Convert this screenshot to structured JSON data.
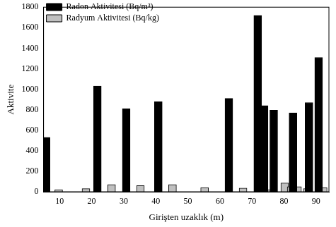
{
  "chart_data": {
    "type": "bar",
    "x_label": "Girişten uzaklık (m)",
    "y_label": "Aktivite",
    "series": [
      {
        "name": "Radon Aktivitesi (Bq/m³)",
        "color": "#000000",
        "x": [
          7,
          23,
          32,
          42,
          64,
          73,
          75,
          78,
          84,
          89,
          92
        ],
        "values": [
          530,
          1030,
          810,
          880,
          910,
          1720,
          840,
          795,
          770,
          870,
          1310
        ]
      },
      {
        "name": "Radyum Aktivitesi (Bq/kg)",
        "color": "#c0c0c0",
        "x": [
          8.5,
          17,
          25,
          34,
          44,
          54,
          66,
          74.5,
          79,
          81,
          83,
          86,
          91
        ],
        "values": [
          20,
          30,
          70,
          60,
          70,
          40,
          35,
          20,
          85,
          50,
          50,
          30,
          40
        ]
      }
    ],
    "xlim": [
      5,
      94
    ],
    "xticks": [
      10,
      20,
      30,
      40,
      50,
      60,
      70,
      80,
      90
    ],
    "ylim": [
      0,
      1800
    ],
    "yticks": [
      0,
      200,
      400,
      600,
      800,
      1000,
      1200,
      1400,
      1600,
      1800
    ],
    "grid": false,
    "legend": "top-left"
  }
}
